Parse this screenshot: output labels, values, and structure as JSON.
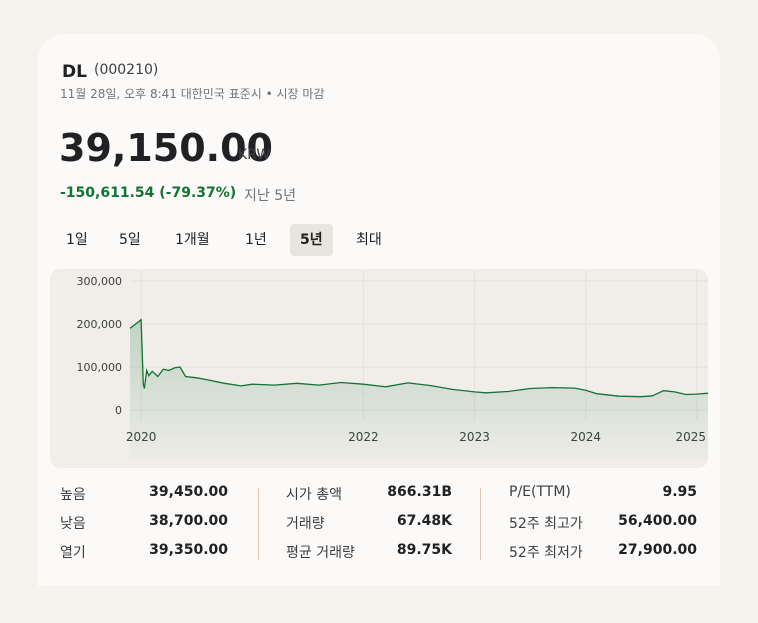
{
  "header": {
    "name": "DL",
    "code": "(000210)",
    "timestamp": "11월 28일, 오후 8:41 대한민국 표준시 • 시장 마감"
  },
  "quote": {
    "price": "39,150.00",
    "currency": "KRW",
    "change": "-150,611.54 (-79.37%)",
    "change_period": "지난 5년",
    "change_color": "#137333"
  },
  "tabs": [
    {
      "label": "1일",
      "active": false
    },
    {
      "label": "5일",
      "active": false
    },
    {
      "label": "1개월",
      "active": false
    },
    {
      "label": "1년",
      "active": false
    },
    {
      "label": "5년",
      "active": true
    },
    {
      "label": "최대",
      "active": false
    }
  ],
  "chart_data": {
    "type": "area",
    "series_color": "#137333",
    "yticks": [
      "300,000",
      "200,000",
      "100,000",
      "0"
    ],
    "ytick_values": [
      300000,
      200000,
      100000,
      0
    ],
    "xticks": [
      "2020",
      "2022",
      "2023",
      "2024",
      "2025"
    ],
    "xtick_values": [
      2020.0,
      2022.0,
      2023.0,
      2024.0,
      2025.0
    ],
    "ylim": [
      0,
      300000
    ],
    "xlim": [
      2019.9,
      2025.1
    ],
    "grid": true,
    "x": [
      2019.9,
      2019.95,
      2020.0,
      2020.02,
      2020.03,
      2020.05,
      2020.07,
      2020.1,
      2020.15,
      2020.2,
      2020.25,
      2020.3,
      2020.35,
      2020.4,
      2020.5,
      2020.6,
      2020.75,
      2020.9,
      2021.0,
      2021.2,
      2021.4,
      2021.6,
      2021.8,
      2022.0,
      2022.2,
      2022.4,
      2022.6,
      2022.8,
      2023.0,
      2023.1,
      2023.3,
      2023.5,
      2023.7,
      2023.9,
      2024.0,
      2024.1,
      2024.3,
      2024.5,
      2024.6,
      2024.7,
      2024.8,
      2024.9,
      2025.0,
      2025.1
    ],
    "values": [
      190000,
      200000,
      210000,
      60000,
      50000,
      92000,
      80000,
      90000,
      78000,
      95000,
      92000,
      98000,
      100000,
      78000,
      75000,
      70000,
      62000,
      56000,
      60000,
      58000,
      62000,
      58000,
      64000,
      60000,
      54000,
      63000,
      57000,
      48000,
      42000,
      40000,
      43000,
      50000,
      52000,
      51000,
      46000,
      38000,
      32000,
      31000,
      33000,
      45000,
      42000,
      36000,
      37000,
      39150
    ]
  },
  "stats": {
    "col1": [
      {
        "label": "높음",
        "value": "39,450.00"
      },
      {
        "label": "낮음",
        "value": "38,700.00"
      },
      {
        "label": "열기",
        "value": "39,350.00"
      }
    ],
    "col2": [
      {
        "label": "시가 총액",
        "value": "866.31B"
      },
      {
        "label": "거래량",
        "value": "67.48K"
      },
      {
        "label": "평균 거래량",
        "value": "89.75K"
      }
    ],
    "col3": [
      {
        "label": "P/E(TTM)",
        "value": "9.95"
      },
      {
        "label": "52주 최고가",
        "value": "56,400.00"
      },
      {
        "label": "52주 최저가",
        "value": "27,900.00"
      }
    ]
  }
}
